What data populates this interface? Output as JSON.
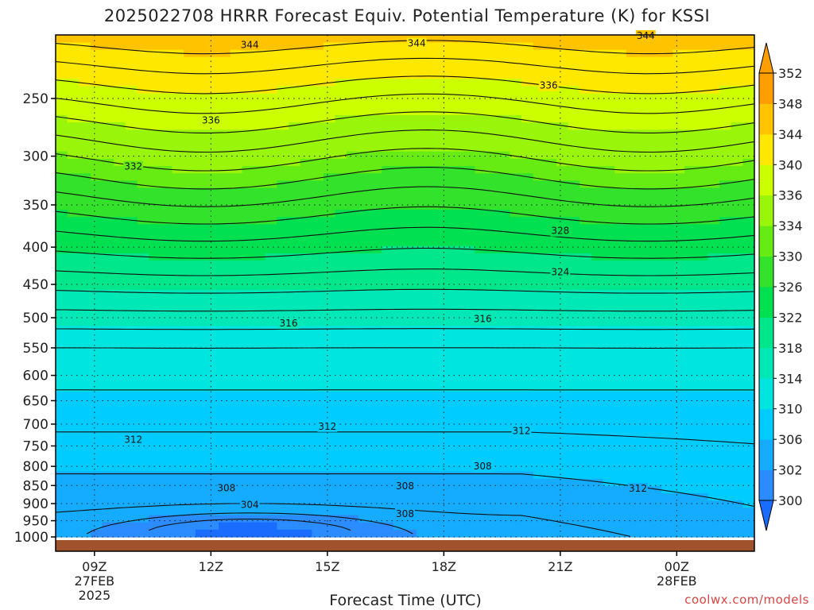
{
  "chart_data": {
    "type": "contour",
    "title": "2025022708 HRRR Forecast Equiv. Potential Temperature (K) for KSSI",
    "xlabel": "Forecast Time (UTC)",
    "ylabel": "",
    "x_ticks": [
      {
        "label": "09Z",
        "sub": [
          "27FEB",
          "2025"
        ],
        "hours_from_09z": 0
      },
      {
        "label": "12Z",
        "sub": [],
        "hours_from_09z": 3
      },
      {
        "label": "15Z",
        "sub": [],
        "hours_from_09z": 6
      },
      {
        "label": "18Z",
        "sub": [],
        "hours_from_09z": 9
      },
      {
        "label": "21Z",
        "sub": [],
        "hours_from_09z": 12
      },
      {
        "label": "00Z",
        "sub": [
          "28FEB"
        ],
        "hours_from_09z": 15
      }
    ],
    "x_range_hours": [
      -1,
      17
    ],
    "y_ticks": [
      250,
      300,
      350,
      400,
      450,
      500,
      550,
      600,
      650,
      700,
      750,
      800,
      850,
      900,
      950,
      1000
    ],
    "y_range_hpa": [
      200,
      1000
    ],
    "y_scale": "log (pressure)",
    "colorbar": {
      "levels": [
        300,
        302,
        306,
        310,
        314,
        318,
        322,
        326,
        330,
        334,
        336,
        340,
        344,
        348,
        352
      ],
      "tick_labels": [
        "300",
        "302",
        "306",
        "310",
        "314",
        "318",
        "322",
        "326",
        "330",
        "334",
        "336",
        "340",
        "344",
        "348",
        "352"
      ],
      "colors": [
        "#1a6cff",
        "#2a8cff",
        "#15acff",
        "#00ccff",
        "#00e5e0",
        "#00e8b5",
        "#00e68a",
        "#00e050",
        "#33e22b",
        "#66ec12",
        "#99f50a",
        "#ccff00",
        "#ffe800",
        "#ffc300",
        "#ff9e00"
      ],
      "low_color": "#1a6cff",
      "high_color": "#ff9e00"
    },
    "contour_labels": [
      {
        "value": "344",
        "hour": 4,
        "p": 211
      },
      {
        "value": "344",
        "hour": 8.3,
        "p": 210
      },
      {
        "value": "344",
        "hour": 14.2,
        "p": 205
      },
      {
        "value": "336",
        "hour": 11.7,
        "p": 240
      },
      {
        "value": "336",
        "hour": 3,
        "p": 268
      },
      {
        "value": "332",
        "hour": 1,
        "p": 310
      },
      {
        "value": "328",
        "hour": 12,
        "p": 380
      },
      {
        "value": "324",
        "hour": 12,
        "p": 433
      },
      {
        "value": "316",
        "hour": 5,
        "p": 509
      },
      {
        "value": "316",
        "hour": 10,
        "p": 502
      },
      {
        "value": "312",
        "hour": 1,
        "p": 735
      },
      {
        "value": "312",
        "hour": 6,
        "p": 705
      },
      {
        "value": "312",
        "hour": 11,
        "p": 715
      },
      {
        "value": "308",
        "hour": 10,
        "p": 800
      },
      {
        "value": "308",
        "hour": 3.4,
        "p": 857
      },
      {
        "value": "308",
        "hour": 8,
        "p": 852
      },
      {
        "value": "308",
        "hour": 8,
        "p": 930
      },
      {
        "value": "304",
        "hour": 4,
        "p": 903
      },
      {
        "value": "312",
        "hour": 14,
        "p": 858
      }
    ],
    "ground_color": "#a0522d",
    "grid": true,
    "legend": "colorbar right"
  }
}
